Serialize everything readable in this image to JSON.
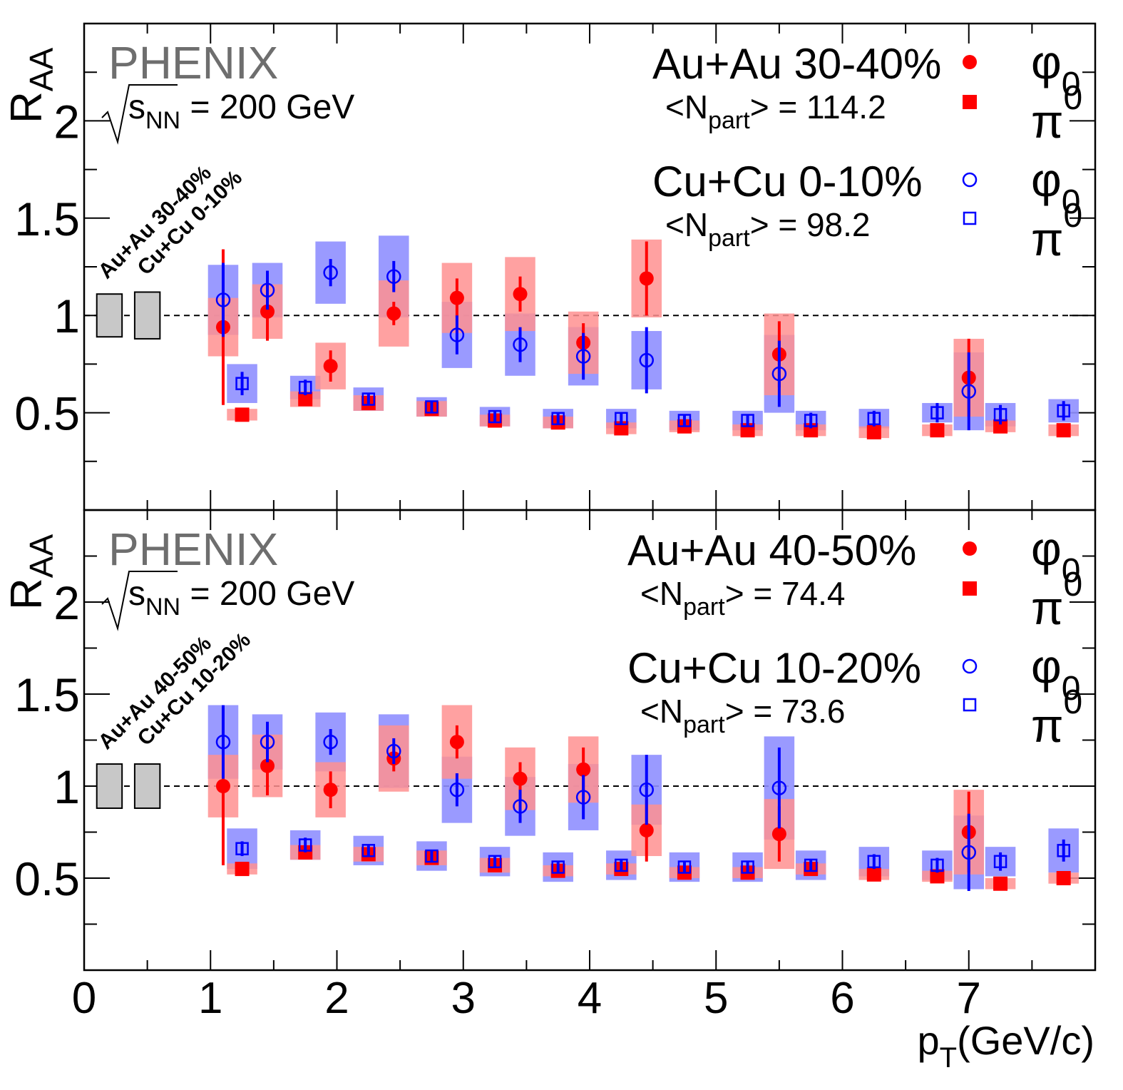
{
  "xaxis": {
    "label_main": "p",
    "label_sub": "T",
    "label_unit": "(GeV/c)",
    "range": [
      0,
      8
    ],
    "ticks": [
      0,
      1,
      2,
      3,
      4,
      5,
      6,
      7
    ],
    "tick_labels": [
      "0",
      "1",
      "2",
      "3",
      "4",
      "5",
      "6",
      "7"
    ]
  },
  "chart_data": [
    {
      "type": "scatter",
      "experiment": "PHENIX",
      "energy_main": "s",
      "energy_sub": "NN",
      "energy_value": "= 200 GeV",
      "ylabel_main": "R",
      "ylabel_sub": "AA",
      "ylim": [
        0,
        2.5
      ],
      "yticks": [
        0.5,
        1,
        1.5,
        2
      ],
      "ytick_labels": [
        "0.5",
        "1",
        "1.5",
        "2"
      ],
      "reference_line": 1,
      "norm_label_line1": "Au+Au 30-40%",
      "norm_label_line2": "Cu+Cu 0-10%",
      "norm_boxes": [
        {
          "x_center": 0.2,
          "low": 0.89,
          "high": 1.11
        },
        {
          "x_center": 0.5,
          "low": 0.88,
          "high": 1.12
        }
      ],
      "legend": {
        "system1": {
          "label": "Au+Au 30-40%",
          "npart_prefix": "<N",
          "npart_sub": "part",
          "npart_value": "> = 114.2"
        },
        "system2": {
          "label": "Cu+Cu  0-10%",
          "npart_prefix": "<N",
          "npart_sub": "part",
          "npart_value": "> = 98.2"
        },
        "phi_symbol": "φ",
        "phi_sub": "0",
        "pi_symbol": "π",
        "pi_sup": "0"
      },
      "series": [
        {
          "system": "AuAu",
          "particle": "phi",
          "color": "#ff0000",
          "marker": "circle-filled",
          "x": [
            1.1,
            1.45,
            1.95,
            2.45,
            2.95,
            3.45,
            3.95,
            4.45,
            5.5,
            7.0
          ],
          "y": [
            0.94,
            1.02,
            0.74,
            1.01,
            1.09,
            1.11,
            0.86,
            1.19,
            0.8,
            0.68
          ],
          "err": [
            0.4,
            0.15,
            0.08,
            0.06,
            0.1,
            0.09,
            0.1,
            0.19,
            0.17,
            0.2
          ],
          "sys": [
            0.15,
            0.14,
            0.12,
            0.17,
            0.18,
            0.19,
            0.16,
            0.2,
            0.21,
            0.2
          ]
        },
        {
          "system": "CuCu",
          "particle": "phi",
          "color": "#0000ff",
          "marker": "circle-open",
          "x": [
            1.1,
            1.45,
            1.95,
            2.45,
            2.95,
            3.45,
            3.95,
            4.45,
            5.5,
            7.0
          ],
          "y": [
            1.08,
            1.13,
            1.22,
            1.2,
            0.9,
            0.85,
            0.79,
            0.77,
            0.7,
            0.61
          ],
          "err": [
            0.19,
            0.1,
            0.07,
            0.08,
            0.1,
            0.09,
            0.12,
            0.17,
            0.17,
            0.2
          ],
          "sys": [
            0.18,
            0.14,
            0.16,
            0.21,
            0.17,
            0.16,
            0.15,
            0.15,
            0.2,
            0.2
          ]
        },
        {
          "system": "AuAu",
          "particle": "pi0",
          "color": "#ff0000",
          "marker": "square-filled",
          "x": [
            1.25,
            1.75,
            2.25,
            2.75,
            3.25,
            3.75,
            4.25,
            4.75,
            5.25,
            5.75,
            6.25,
            6.75,
            7.25,
            7.75
          ],
          "y": [
            0.49,
            0.57,
            0.55,
            0.52,
            0.46,
            0.45,
            0.42,
            0.43,
            0.41,
            0.41,
            0.4,
            0.41,
            0.43,
            0.41
          ],
          "err": [
            0.01,
            0.01,
            0.01,
            0.01,
            0.01,
            0.01,
            0.01,
            0.01,
            0.01,
            0.01,
            0.01,
            0.01,
            0.01,
            0.01
          ],
          "sys": [
            0.03,
            0.04,
            0.04,
            0.04,
            0.03,
            0.03,
            0.03,
            0.03,
            0.03,
            0.03,
            0.03,
            0.03,
            0.03,
            0.03
          ]
        },
        {
          "system": "CuCu",
          "particle": "pi0",
          "color": "#0000ff",
          "marker": "square-open",
          "x": [
            1.25,
            1.75,
            2.25,
            2.75,
            3.25,
            3.75,
            4.25,
            4.75,
            5.25,
            5.75,
            6.25,
            6.75,
            7.25,
            7.75
          ],
          "y": [
            0.65,
            0.63,
            0.57,
            0.53,
            0.48,
            0.47,
            0.47,
            0.46,
            0.46,
            0.46,
            0.47,
            0.5,
            0.49,
            0.51
          ],
          "err": [
            0.06,
            0.04,
            0.03,
            0.03,
            0.03,
            0.03,
            0.03,
            0.03,
            0.03,
            0.04,
            0.04,
            0.05,
            0.05,
            0.05
          ],
          "sys": [
            0.1,
            0.06,
            0.06,
            0.05,
            0.05,
            0.05,
            0.05,
            0.05,
            0.05,
            0.05,
            0.05,
            0.05,
            0.06,
            0.06
          ]
        }
      ]
    },
    {
      "type": "scatter",
      "experiment": "PHENIX",
      "energy_main": "s",
      "energy_sub": "NN",
      "energy_value": "= 200 GeV",
      "ylabel_main": "R",
      "ylabel_sub": "AA",
      "ylim": [
        0,
        2.5
      ],
      "yticks": [
        0.5,
        1,
        1.5,
        2
      ],
      "ytick_labels": [
        "0.5",
        "1",
        "1.5",
        "2"
      ],
      "reference_line": 1,
      "norm_label_line1": "Au+Au 40-50%",
      "norm_label_line2": "Cu+Cu 10-20%",
      "norm_boxes": [
        {
          "x_center": 0.2,
          "low": 0.88,
          "high": 1.12
        },
        {
          "x_center": 0.5,
          "low": 0.88,
          "high": 1.12
        }
      ],
      "legend": {
        "system1": {
          "label": "Au+Au 40-50%",
          "npart_prefix": "<N",
          "npart_sub": "part",
          "npart_value": "> = 74.4"
        },
        "system2": {
          "label": "Cu+Cu  10-20%",
          "npart_prefix": "<N",
          "npart_sub": "part",
          "npart_value": "> = 73.6"
        },
        "phi_symbol": "φ",
        "phi_sub": "0",
        "pi_symbol": "π",
        "pi_sup": "0"
      },
      "series": [
        {
          "system": "AuAu",
          "particle": "phi",
          "color": "#ff0000",
          "marker": "circle-filled",
          "x": [
            1.1,
            1.45,
            1.95,
            2.45,
            2.95,
            3.45,
            3.95,
            4.45,
            5.5,
            7.0
          ],
          "y": [
            1.0,
            1.11,
            0.98,
            1.15,
            1.24,
            1.04,
            1.09,
            0.76,
            0.74,
            0.75
          ],
          "err": [
            0.43,
            0.16,
            0.1,
            0.07,
            0.09,
            0.09,
            0.12,
            0.17,
            0.15,
            0.22
          ],
          "sys": [
            0.17,
            0.17,
            0.15,
            0.18,
            0.2,
            0.17,
            0.18,
            0.14,
            0.19,
            0.23
          ]
        },
        {
          "system": "CuCu",
          "particle": "phi",
          "color": "#0000ff",
          "marker": "circle-open",
          "x": [
            1.1,
            1.45,
            1.95,
            2.45,
            2.95,
            3.45,
            3.95,
            4.45,
            5.5,
            7.0
          ],
          "y": [
            1.24,
            1.24,
            1.24,
            1.19,
            0.98,
            0.89,
            0.94,
            0.98,
            0.99,
            0.64
          ],
          "err": [
            0.2,
            0.11,
            0.07,
            0.07,
            0.09,
            0.09,
            0.12,
            0.19,
            0.22,
            0.21
          ],
          "sys": [
            0.2,
            0.15,
            0.16,
            0.2,
            0.18,
            0.16,
            0.18,
            0.19,
            0.28,
            0.2
          ]
        },
        {
          "system": "AuAu",
          "particle": "pi0",
          "color": "#ff0000",
          "marker": "square-filled",
          "x": [
            1.25,
            1.75,
            2.25,
            2.75,
            3.25,
            3.75,
            4.25,
            4.75,
            5.25,
            5.75,
            6.25,
            6.75,
            7.25,
            7.75
          ],
          "y": [
            0.55,
            0.64,
            0.63,
            0.61,
            0.57,
            0.54,
            0.55,
            0.53,
            0.53,
            0.55,
            0.52,
            0.51,
            0.47,
            0.5
          ],
          "err": [
            0.01,
            0.01,
            0.01,
            0.01,
            0.01,
            0.01,
            0.01,
            0.01,
            0.01,
            0.01,
            0.01,
            0.01,
            0.01,
            0.01
          ],
          "sys": [
            0.03,
            0.04,
            0.04,
            0.04,
            0.04,
            0.03,
            0.03,
            0.03,
            0.03,
            0.03,
            0.03,
            0.03,
            0.03,
            0.03
          ]
        },
        {
          "system": "CuCu",
          "particle": "pi0",
          "color": "#0000ff",
          "marker": "square-open",
          "x": [
            1.25,
            1.75,
            2.25,
            2.75,
            3.25,
            3.75,
            4.25,
            4.75,
            5.25,
            5.75,
            6.25,
            6.75,
            7.25,
            7.75
          ],
          "y": [
            0.66,
            0.68,
            0.65,
            0.62,
            0.59,
            0.56,
            0.57,
            0.56,
            0.56,
            0.57,
            0.59,
            0.57,
            0.59,
            0.65
          ],
          "err": [
            0.04,
            0.04,
            0.03,
            0.03,
            0.03,
            0.03,
            0.03,
            0.03,
            0.03,
            0.03,
            0.04,
            0.04,
            0.05,
            0.06
          ],
          "sys": [
            0.11,
            0.08,
            0.08,
            0.08,
            0.08,
            0.08,
            0.08,
            0.08,
            0.08,
            0.08,
            0.08,
            0.08,
            0.08,
            0.12
          ]
        }
      ]
    }
  ]
}
